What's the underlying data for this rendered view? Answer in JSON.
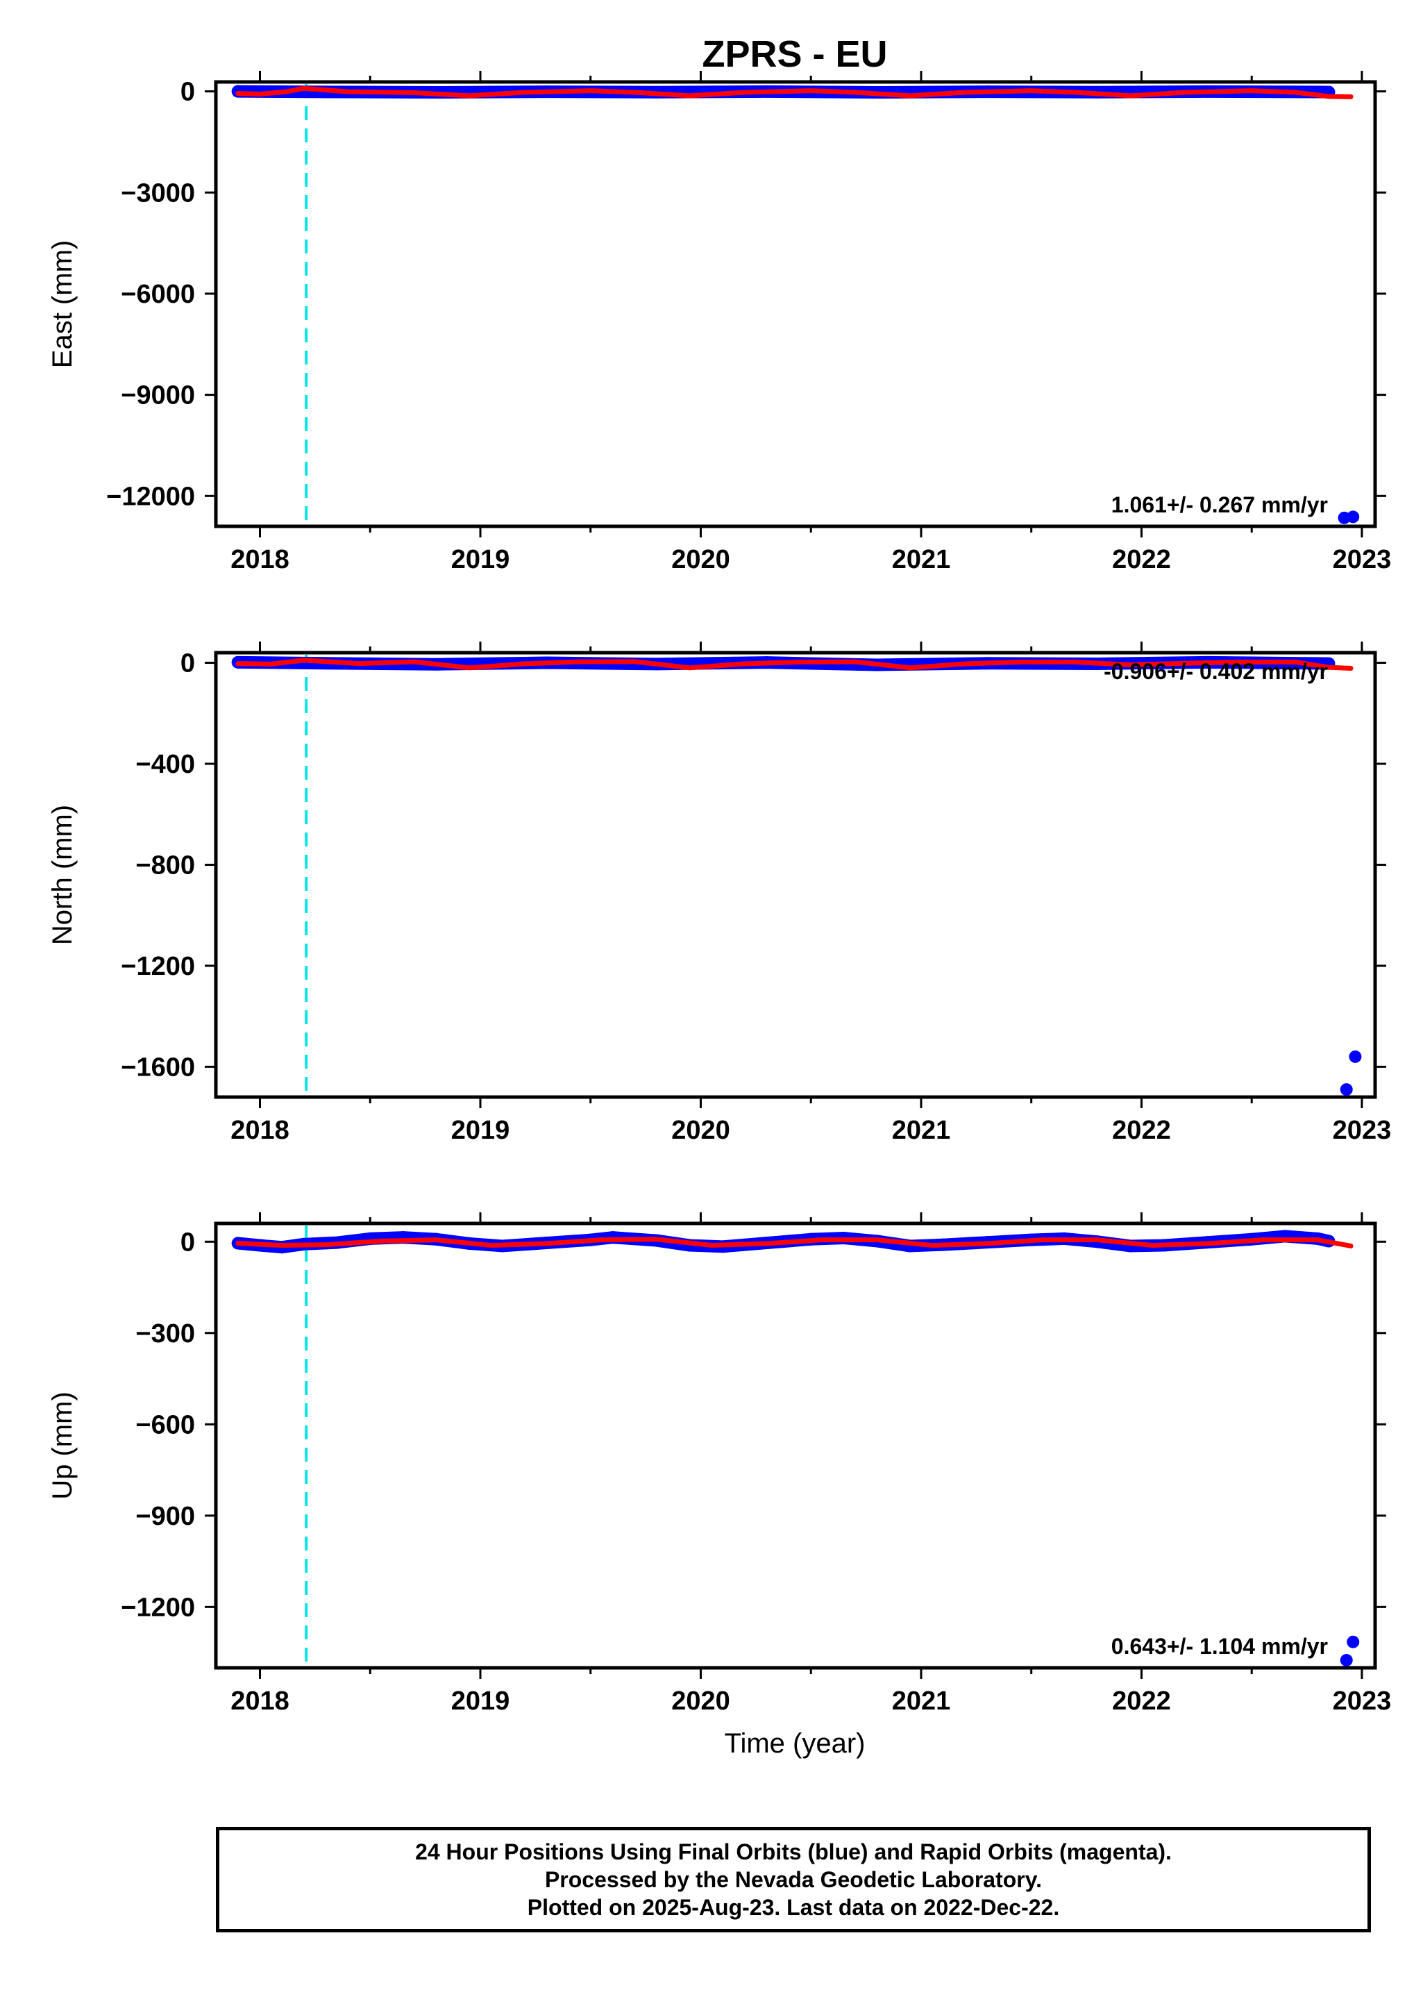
{
  "chart_data": [
    {
      "type": "scatter",
      "title": "ZPRS - EU",
      "ylabel": "East (mm)",
      "xlabel": "",
      "xlim": [
        2017.8,
        2023.06
      ],
      "ylim": [
        -12900,
        280
      ],
      "xticks": [
        2018,
        2019,
        2020,
        2021,
        2022,
        2023
      ],
      "yticks": [
        0,
        -3000,
        -6000,
        -9000,
        -12000
      ],
      "ytick_labels": [
        "0",
        "−3000",
        "−6000",
        "−9000",
        "−12000"
      ],
      "vertical_line": {
        "x": 2018.21,
        "color": "#00e5e5",
        "style": "dashed"
      },
      "rate_annotation": "1.061+/- 0.267 mm/yr",
      "rate_position": "bottom-right",
      "series": [
        {
          "name": "",
          "kind": "points",
          "color": "#0000ff",
          "x": [
            2017.9,
            2018.3,
            2018.8,
            2019.3,
            2019.8,
            2020.3,
            2020.8,
            2021.3,
            2021.8,
            2022.3,
            2022.85
          ],
          "y": [
            0,
            -15,
            -30,
            -10,
            -25,
            -5,
            -30,
            -10,
            -25,
            -5,
            -20
          ]
        },
        {
          "name": "",
          "kind": "points",
          "color": "#0000ff",
          "x": [
            2022.92,
            2022.96
          ],
          "y": [
            -12650,
            -12620
          ]
        },
        {
          "name": "",
          "kind": "line",
          "color": "#ff0000",
          "x": [
            2017.9,
            2018.0,
            2018.12,
            2018.2,
            2018.4,
            2018.7,
            2018.95,
            2019.2,
            2019.5,
            2019.7,
            2019.95,
            2020.2,
            2020.5,
            2020.7,
            2020.95,
            2021.2,
            2021.5,
            2021.7,
            2021.95,
            2022.2,
            2022.5,
            2022.7,
            2022.85,
            2022.95
          ],
          "y": [
            -60,
            -80,
            -10,
            90,
            -10,
            -40,
            -130,
            -30,
            20,
            -30,
            -130,
            -30,
            20,
            -30,
            -130,
            -30,
            20,
            -30,
            -130,
            -30,
            20,
            -30,
            -150,
            -160
          ]
        }
      ]
    },
    {
      "type": "scatter",
      "title": "",
      "ylabel": "North (mm)",
      "xlabel": "",
      "xlim": [
        2017.8,
        2023.06
      ],
      "ylim": [
        -1720,
        40
      ],
      "xticks": [
        2018,
        2019,
        2020,
        2021,
        2022,
        2023
      ],
      "yticks": [
        0,
        -400,
        -800,
        -1200,
        -1600
      ],
      "ytick_labels": [
        "0",
        "−400",
        "−800",
        "−1200",
        "−1600"
      ],
      "vertical_line": {
        "x": 2018.21,
        "color": "#00e5e5",
        "style": "dashed"
      },
      "rate_annotation": "-0.906+/- 0.402 mm/yr",
      "rate_position": "top-right",
      "series": [
        {
          "name": "",
          "kind": "points",
          "color": "#0000ff",
          "x": [
            2017.9,
            2018.3,
            2018.8,
            2019.3,
            2019.8,
            2020.3,
            2020.8,
            2021.3,
            2021.8,
            2022.3,
            2022.85
          ],
          "y": [
            2,
            -2,
            -6,
            0,
            -5,
            1,
            -8,
            -2,
            -4,
            2,
            -3
          ]
        },
        {
          "name": "",
          "kind": "points",
          "color": "#0000ff",
          "x": [
            2022.93,
            2022.97
          ],
          "y": [
            -1690,
            -1560
          ]
        },
        {
          "name": "",
          "kind": "line",
          "color": "#ff0000",
          "x": [
            2017.9,
            2018.05,
            2018.2,
            2018.45,
            2018.7,
            2018.95,
            2019.2,
            2019.45,
            2019.7,
            2019.95,
            2020.2,
            2020.45,
            2020.7,
            2020.95,
            2021.2,
            2021.45,
            2021.7,
            2021.95,
            2022.2,
            2022.45,
            2022.7,
            2022.85,
            2022.95
          ],
          "y": [
            -3,
            -5,
            10,
            -3,
            4,
            -20,
            -4,
            4,
            5,
            -20,
            -4,
            3,
            4,
            -20,
            -4,
            3,
            3,
            -8,
            -2,
            3,
            3,
            -18,
            -22
          ]
        }
      ]
    },
    {
      "type": "scatter",
      "title": "",
      "ylabel": "Up (mm)",
      "xlabel": "Time (year)",
      "xlim": [
        2017.8,
        2023.06
      ],
      "ylim": [
        -1400,
        60
      ],
      "xticks": [
        2018,
        2019,
        2020,
        2021,
        2022,
        2023
      ],
      "yticks": [
        0,
        -300,
        -600,
        -900,
        -1200
      ],
      "ytick_labels": [
        "0",
        "−300",
        "−600",
        "−900",
        "−1200"
      ],
      "vertical_line": {
        "x": 2018.21,
        "color": "#00e5e5",
        "style": "dashed"
      },
      "rate_annotation": "0.643+/- 1.104 mm/yr",
      "rate_position": "bottom-right",
      "series": [
        {
          "name": "",
          "kind": "points",
          "color": "#0000ff",
          "x": [
            2017.9,
            2018.0,
            2018.1,
            2018.2,
            2018.35,
            2018.5,
            2018.65,
            2018.8,
            2018.95,
            2019.1,
            2019.3,
            2019.5,
            2019.6,
            2019.8,
            2019.95,
            2020.1,
            2020.3,
            2020.5,
            2020.65,
            2020.8,
            2020.95,
            2021.1,
            2021.3,
            2021.5,
            2021.65,
            2021.8,
            2021.95,
            2022.1,
            2022.3,
            2022.5,
            2022.65,
            2022.8,
            2022.85
          ],
          "y": [
            -5,
            -12,
            -18,
            -8,
            -3,
            10,
            14,
            8,
            -6,
            -14,
            -4,
            6,
            14,
            4,
            -12,
            -16,
            -4,
            8,
            12,
            2,
            -14,
            -10,
            -2,
            6,
            10,
            0,
            -14,
            -12,
            -2,
            8,
            18,
            10,
            2
          ]
        },
        {
          "name": "",
          "kind": "points",
          "color": "#0000ff",
          "x": [
            2022.93,
            2022.96
          ],
          "y": [
            -1375,
            -1315
          ]
        },
        {
          "name": "",
          "kind": "line",
          "color": "#ff0000",
          "x": [
            2017.9,
            2018.1,
            2018.3,
            2018.55,
            2018.8,
            2019.05,
            2019.3,
            2019.55,
            2019.8,
            2020.05,
            2020.3,
            2020.55,
            2020.8,
            2021.05,
            2021.3,
            2021.55,
            2021.8,
            2022.05,
            2022.3,
            2022.55,
            2022.8,
            2022.95
          ],
          "y": [
            -5,
            -12,
            -10,
            2,
            6,
            -12,
            -6,
            6,
            8,
            -12,
            -6,
            6,
            6,
            -12,
            -6,
            6,
            6,
            -12,
            -6,
            6,
            6,
            -14
          ]
        }
      ]
    }
  ],
  "footer": {
    "line1": "24 Hour Positions Using Final Orbits (blue) and Rapid Orbits (magenta).",
    "line2": "Processed by the Nevada Geodetic Laboratory.",
    "line3": "Plotted on 2025-Aug-23. Last data on 2022-Dec-22."
  }
}
